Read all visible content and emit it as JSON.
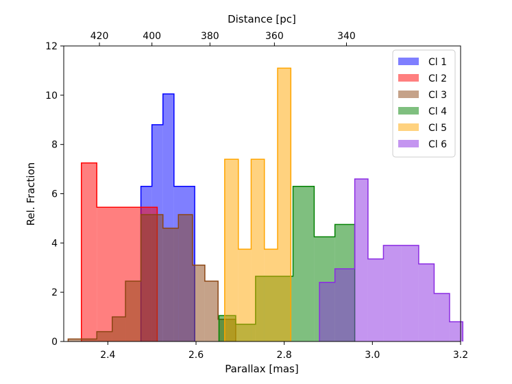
{
  "chart_data": {
    "type": "histogram",
    "xlabel": "Parallax [mas]",
    "ylabel": "Rel. Fraction",
    "x2label": "Distance [pc]",
    "xlim": [
      2.3,
      3.2
    ],
    "ylim": [
      0,
      12
    ],
    "xticks": [
      2.4,
      2.6,
      2.8,
      3.0,
      3.2
    ],
    "xtick_labels": [
      "2.4",
      "2.6",
      "2.8",
      "3.0",
      "3.2"
    ],
    "yticks": [
      0,
      2,
      4,
      6,
      8,
      10,
      12
    ],
    "ytick_labels": [
      "0",
      "2",
      "4",
      "6",
      "8",
      "10",
      "12"
    ],
    "x2ticks_pc": [
      420,
      400,
      380,
      360,
      340
    ],
    "x2tick_labels": [
      "420",
      "400",
      "380",
      "360",
      "340"
    ],
    "legend_position": "upper right",
    "grid": false,
    "series": [
      {
        "name": "Cl 1",
        "color": "#0000ff",
        "edges": [
          2.475,
          2.5,
          2.525,
          2.55,
          2.597
        ],
        "values": [
          6.3,
          8.8,
          10.05,
          6.3
        ]
      },
      {
        "name": "Cl 2",
        "color": "#ff0000",
        "edges": [
          2.34,
          2.375,
          2.475,
          2.512
        ],
        "values": [
          7.25,
          5.45,
          5.45
        ]
      },
      {
        "name": "Cl 3",
        "color": "#8b4513",
        "edges": [
          2.31,
          2.34,
          2.375,
          2.41,
          2.44,
          2.475,
          2.525,
          2.56,
          2.592,
          2.62,
          2.65,
          2.69
        ],
        "values": [
          0.1,
          0.1,
          0.4,
          1.0,
          2.45,
          5.15,
          4.6,
          5.15,
          3.1,
          2.45,
          0.9
        ]
      },
      {
        "name": "Cl 4",
        "color": "#008000",
        "edges": [
          2.652,
          2.672,
          2.69,
          2.735,
          2.815,
          2.82,
          2.868,
          2.915,
          2.96
        ],
        "values": [
          1.05,
          1.05,
          0.7,
          2.65,
          2.65,
          6.3,
          4.25,
          4.75
        ]
      },
      {
        "name": "Cl 5",
        "color": "#ffa500",
        "edges": [
          2.665,
          2.696,
          2.725,
          2.755,
          2.785,
          2.815
        ],
        "values": [
          7.4,
          3.75,
          7.4,
          3.75,
          11.1
        ]
      },
      {
        "name": "Cl 6",
        "color": "#8a2be2",
        "edges": [
          2.88,
          2.915,
          2.96,
          2.99,
          3.025,
          3.065,
          3.105,
          3.14,
          3.175,
          3.205
        ],
        "values": [
          2.4,
          2.95,
          6.6,
          3.35,
          3.9,
          3.9,
          3.15,
          1.95,
          0.8
        ]
      }
    ]
  }
}
